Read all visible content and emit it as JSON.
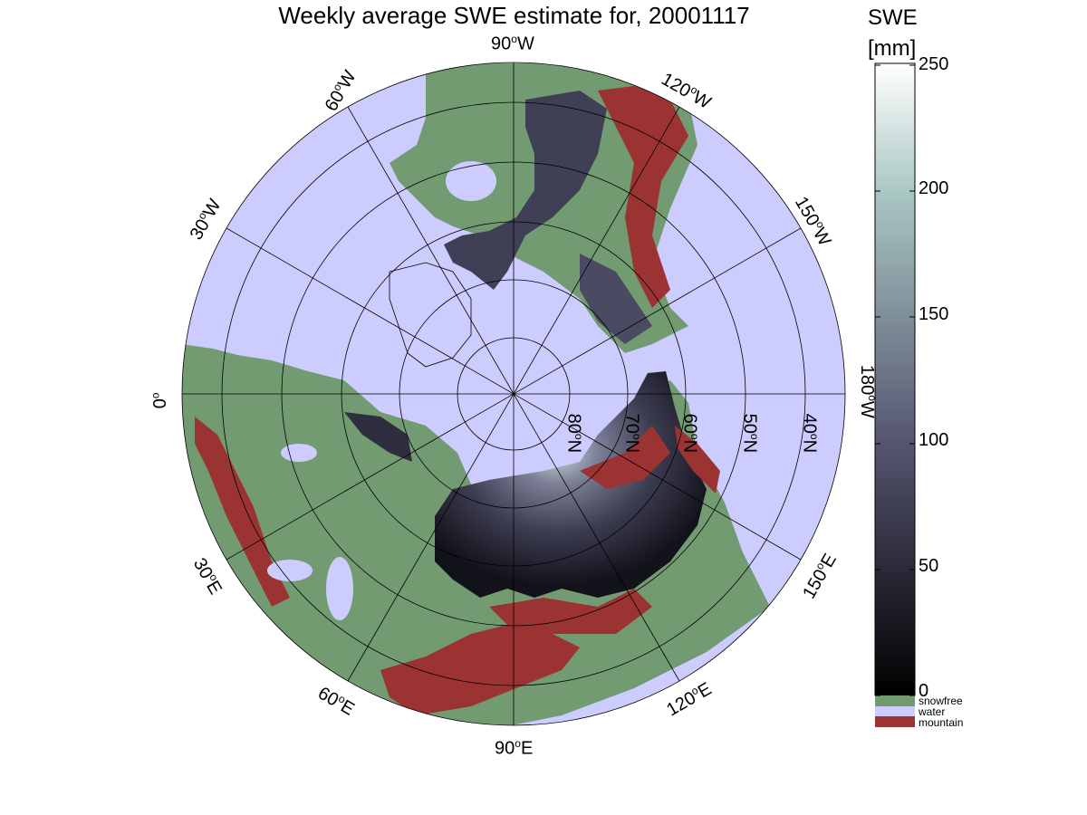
{
  "title": "Weekly average SWE estimate for, 20001117",
  "colorbar": {
    "title_line1": "SWE",
    "title_line2": "[mm]",
    "ticks": [
      "0",
      "50",
      "100",
      "150",
      "200",
      "250"
    ],
    "range": [
      0,
      250
    ],
    "categories": [
      {
        "label": "snowfree",
        "color": "#739b72"
      },
      {
        "label": "water",
        "color": "#ccccff"
      },
      {
        "label": "mountain",
        "color": "#9b3333"
      }
    ]
  },
  "map": {
    "projection": "north-polar-stereographic",
    "longitude_labels": [
      "90",
      "W",
      "60",
      "W",
      "30",
      "W",
      "0",
      "180",
      "W",
      "150",
      "W",
      "120",
      "W",
      "90",
      "E",
      "60",
      "E",
      "30",
      "E",
      "150",
      "E",
      "120",
      "E"
    ],
    "lon_labels": {
      "lon_90W": {
        "num": "90",
        "hemi": "W"
      },
      "lon_60W": {
        "num": "60",
        "hemi": "W"
      },
      "lon_30W": {
        "num": "30",
        "hemi": "W"
      },
      "lon_0": {
        "num": "0",
        "hemi": ""
      },
      "lon_180W": {
        "num": "180",
        "hemi": "W"
      },
      "lon_150W": {
        "num": "150",
        "hemi": "W"
      },
      "lon_120W": {
        "num": "120",
        "hemi": "W"
      },
      "lon_90E": {
        "num": "90",
        "hemi": "E"
      },
      "lon_60E": {
        "num": "60",
        "hemi": "E"
      },
      "lon_30E": {
        "num": "30",
        "hemi": "E"
      },
      "lon_150E": {
        "num": "150",
        "hemi": "E"
      },
      "lon_120E": {
        "num": "120",
        "hemi": "E"
      }
    },
    "lat_labels": {
      "lat_80N": {
        "num": "80",
        "hemi": "N"
      },
      "lat_70N": {
        "num": "70",
        "hemi": "N"
      },
      "lat_60N": {
        "num": "60",
        "hemi": "N"
      },
      "lat_50N": {
        "num": "50",
        "hemi": "N"
      },
      "lat_40N": {
        "num": "40",
        "hemi": "N"
      }
    },
    "colors": {
      "water": "#ccccff",
      "snowfree": "#739b72",
      "mountain": "#9b3333",
      "swe_low": "#0b0b10",
      "swe_mid": "#4d4d66",
      "swe_high": "#cfe3dc"
    }
  }
}
